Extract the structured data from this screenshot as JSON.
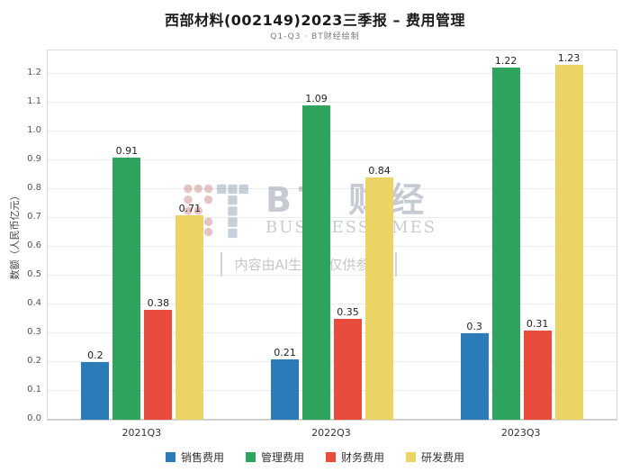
{
  "header": {
    "title": "西部材料(002149)2023三季报 – 费用管理",
    "subtitle": "Q1-Q3 · BT财经绘制"
  },
  "chart_data": {
    "type": "bar",
    "categories": [
      "2021Q3",
      "2022Q3",
      "2023Q3"
    ],
    "series": [
      {
        "name": "销售费用",
        "color": "#2b7bb9",
        "values": [
          0.2,
          0.21,
          0.3
        ]
      },
      {
        "name": "管理费用",
        "color": "#2ea45f",
        "values": [
          0.91,
          1.09,
          1.22
        ]
      },
      {
        "name": "财务费用",
        "color": "#e74c3c",
        "values": [
          0.38,
          0.35,
          0.31
        ]
      },
      {
        "name": "研发费用",
        "color": "#ecd464",
        "values": [
          0.71,
          0.84,
          1.23
        ]
      }
    ],
    "title": "西部材料(002149)2023三季报 – 费用管理",
    "xlabel": "",
    "ylabel": "数额（人民币亿元）",
    "ylim": [
      0,
      1.28
    ],
    "yticks": [
      0.0,
      0.1,
      0.2,
      0.3,
      0.4,
      0.5,
      0.6,
      0.7,
      0.8,
      0.9,
      1.0,
      1.1,
      1.2
    ],
    "grid": true,
    "legend_position": "bottom"
  },
  "watermark": {
    "logo_text": "BT 财经",
    "logo_sub": "BUSINESSTIMES",
    "disclaimer": "内容由AI生成，仅供参考"
  }
}
